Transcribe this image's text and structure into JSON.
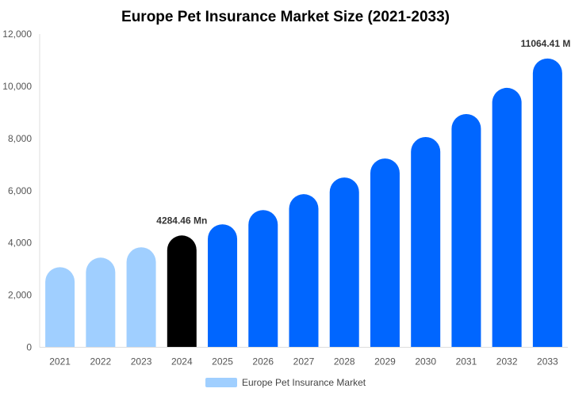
{
  "chart_data": {
    "type": "bar",
    "title": "Europe Pet Insurance Market Size (2021-2033)",
    "xlabel": "",
    "ylabel": "",
    "ylim": [
      0,
      12000
    ],
    "yticks": [
      "0",
      "2,000",
      "4,000",
      "6,000",
      "8,000",
      "10,000",
      "12,000"
    ],
    "grid": false,
    "legend_position": "bottom",
    "categories": [
      "2021",
      "2022",
      "2023",
      "2024",
      "2025",
      "2026",
      "2027",
      "2028",
      "2029",
      "2030",
      "2031",
      "2032",
      "2033"
    ],
    "series": [
      {
        "name": "Europe Pet Insurance Market",
        "values": [
          3070,
          3435,
          3830,
          4284.46,
          4711,
          5258,
          5866,
          6505,
          7234,
          8055,
          8936,
          9939,
          11064.41
        ]
      }
    ],
    "bar_colors": [
      "#a0cfff",
      "#a0cfff",
      "#a0cfff",
      "#000000",
      "#0066ff",
      "#0066ff",
      "#0066ff",
      "#0066ff",
      "#0066ff",
      "#0066ff",
      "#0066ff",
      "#0066ff",
      "#0066ff"
    ],
    "data_labels": [
      {
        "category": "2024",
        "text": "4284.46 Mn"
      },
      {
        "category": "2033",
        "text": "11064.41 M"
      }
    ],
    "legend_color": "#a0cfff"
  }
}
